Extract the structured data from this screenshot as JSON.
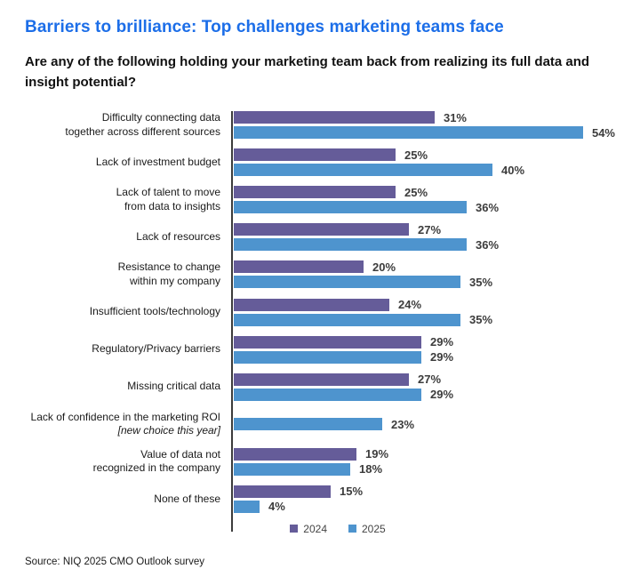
{
  "header": {
    "title": "Barriers to brilliance: Top challenges marketing teams face",
    "question": "Are any of the following holding your marketing team back from realizing its full data and insight potential?"
  },
  "colors": {
    "title_accent": "#1C6EE8",
    "axis": "#3C3C3C"
  },
  "chart_data": {
    "type": "bar",
    "orientation": "horizontal",
    "unit": "%",
    "xlim": [
      0,
      60
    ],
    "grid": false,
    "legend_position": "bottom",
    "categories": [
      {
        "lines": [
          "Difficulty connecting data",
          "together across different sources"
        ]
      },
      {
        "lines": [
          "Lack of investment budget"
        ]
      },
      {
        "lines": [
          "Lack of talent to move",
          "from data to insights"
        ]
      },
      {
        "lines": [
          "Lack of resources"
        ]
      },
      {
        "lines": [
          "Resistance to change",
          "within my company"
        ]
      },
      {
        "lines": [
          "Insufficient tools/technology"
        ]
      },
      {
        "lines": [
          "Regulatory/Privacy barriers"
        ]
      },
      {
        "lines": [
          "Missing critical data"
        ]
      },
      {
        "lines": [
          "Lack of confidence in the marketing ROI"
        ],
        "note": "[new choice this year]"
      },
      {
        "lines": [
          "Value of data not",
          "recognized in the company"
        ]
      },
      {
        "lines": [
          "None of these"
        ]
      }
    ],
    "series": [
      {
        "name": "2024",
        "color": "#655C99",
        "values": [
          31,
          25,
          25,
          27,
          20,
          24,
          29,
          27,
          null,
          19,
          15
        ]
      },
      {
        "name": "2025",
        "color": "#4E94CE",
        "values": [
          54,
          40,
          36,
          36,
          35,
          35,
          29,
          29,
          23,
          18,
          4
        ]
      }
    ]
  },
  "footer": {
    "source": "Source: NIQ 2025 CMO Outlook survey"
  }
}
